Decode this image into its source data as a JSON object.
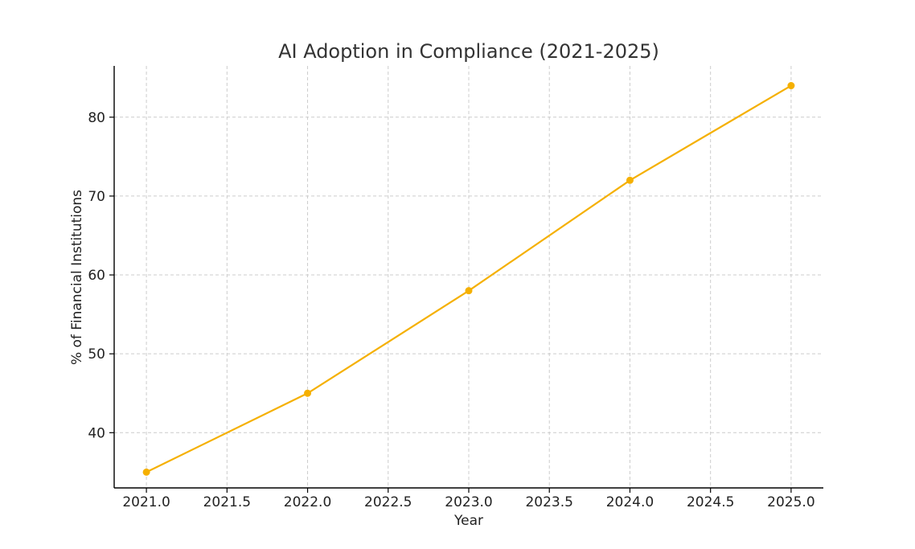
{
  "chart_data": {
    "type": "line",
    "title": "AI Adoption in Compliance (2021-2025)",
    "xlabel": "Year",
    "ylabel": "% of Financial Institutions",
    "x": [
      2021,
      2022,
      2023,
      2024,
      2025
    ],
    "series": [
      {
        "values": [
          35,
          45,
          58,
          72,
          84
        ],
        "color": "#f5b000",
        "marker": "circle"
      }
    ],
    "xlim": [
      2020.8,
      2025.2
    ],
    "ylim": [
      33,
      86.5
    ],
    "xticks": [
      2021.0,
      2021.5,
      2022.0,
      2022.5,
      2023.0,
      2023.5,
      2024.0,
      2024.5,
      2025.0
    ],
    "xtick_labels": [
      "2021.0",
      "2021.5",
      "2022.0",
      "2022.5",
      "2023.0",
      "2023.5",
      "2024.0",
      "2024.5",
      "2025.0"
    ],
    "yticks": [
      40,
      50,
      60,
      70,
      80
    ],
    "ytick_labels": [
      "40",
      "50",
      "60",
      "70",
      "80"
    ],
    "grid": true,
    "grid_style": "dashed"
  }
}
